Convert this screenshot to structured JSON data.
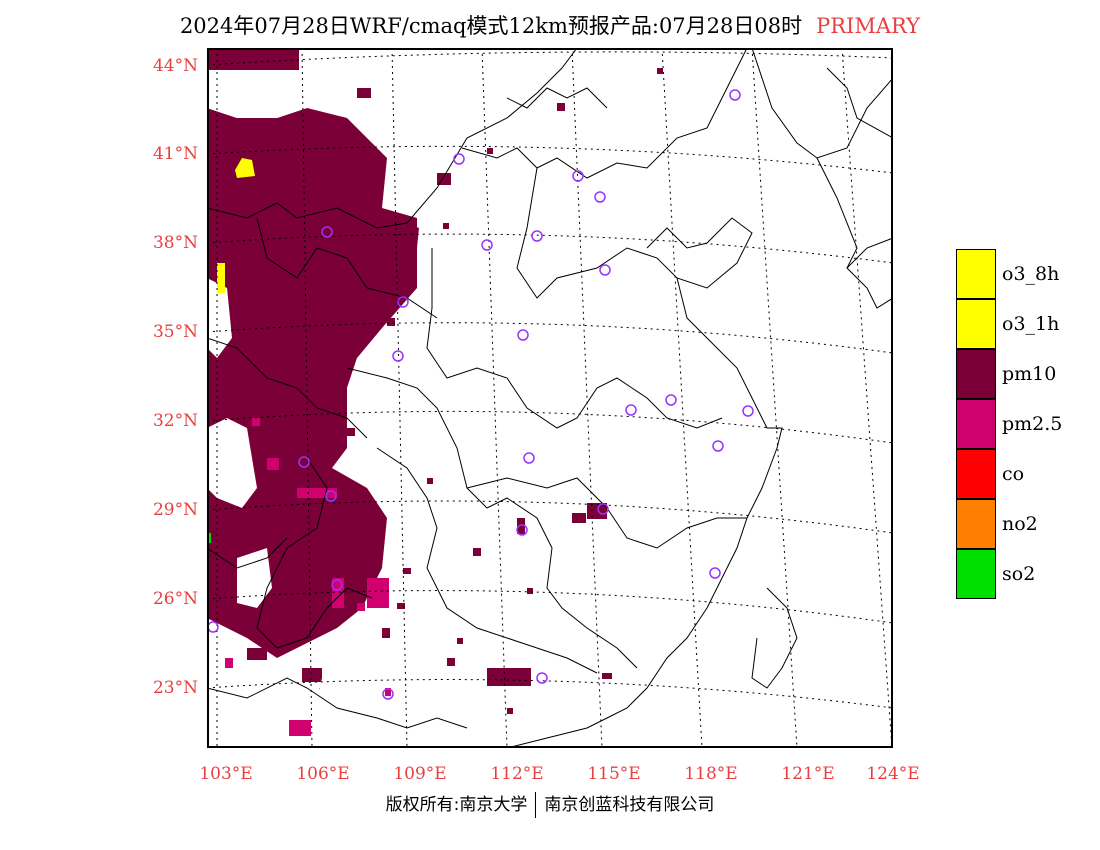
{
  "header": {
    "title": "2024年07月28日WRF/cmaq模式12km预报产品:07月28日08时",
    "tag": "PRIMARY"
  },
  "map": {
    "lat_labels": [
      "44°N",
      "41°N",
      "38°N",
      "35°N",
      "32°N",
      "29°N",
      "26°N",
      "23°N"
    ],
    "lon_labels": [
      "103°E",
      "106°E",
      "109°E",
      "112°E",
      "115°E",
      "118°E",
      "121°E",
      "124°E"
    ],
    "colors": {
      "pm10": "#7b0038",
      "pm2_5": "#d0006f",
      "o3": "#ffff00",
      "station": "#9933ff"
    }
  },
  "legend": {
    "items": [
      {
        "label": "o3_8h",
        "color": "#ffff00"
      },
      {
        "label": "o3_1h",
        "color": "#ffff00"
      },
      {
        "label": "pm10",
        "color": "#7b0038"
      },
      {
        "label": "pm2.5",
        "color": "#d0006f"
      },
      {
        "label": "co",
        "color": "#ff0000"
      },
      {
        "label": "no2",
        "color": "#ff8000"
      },
      {
        "label": "so2",
        "color": "#00e000"
      }
    ]
  },
  "footer": {
    "left": "版权所有:南京大学",
    "right": "南京创蓝科技有限公司"
  }
}
